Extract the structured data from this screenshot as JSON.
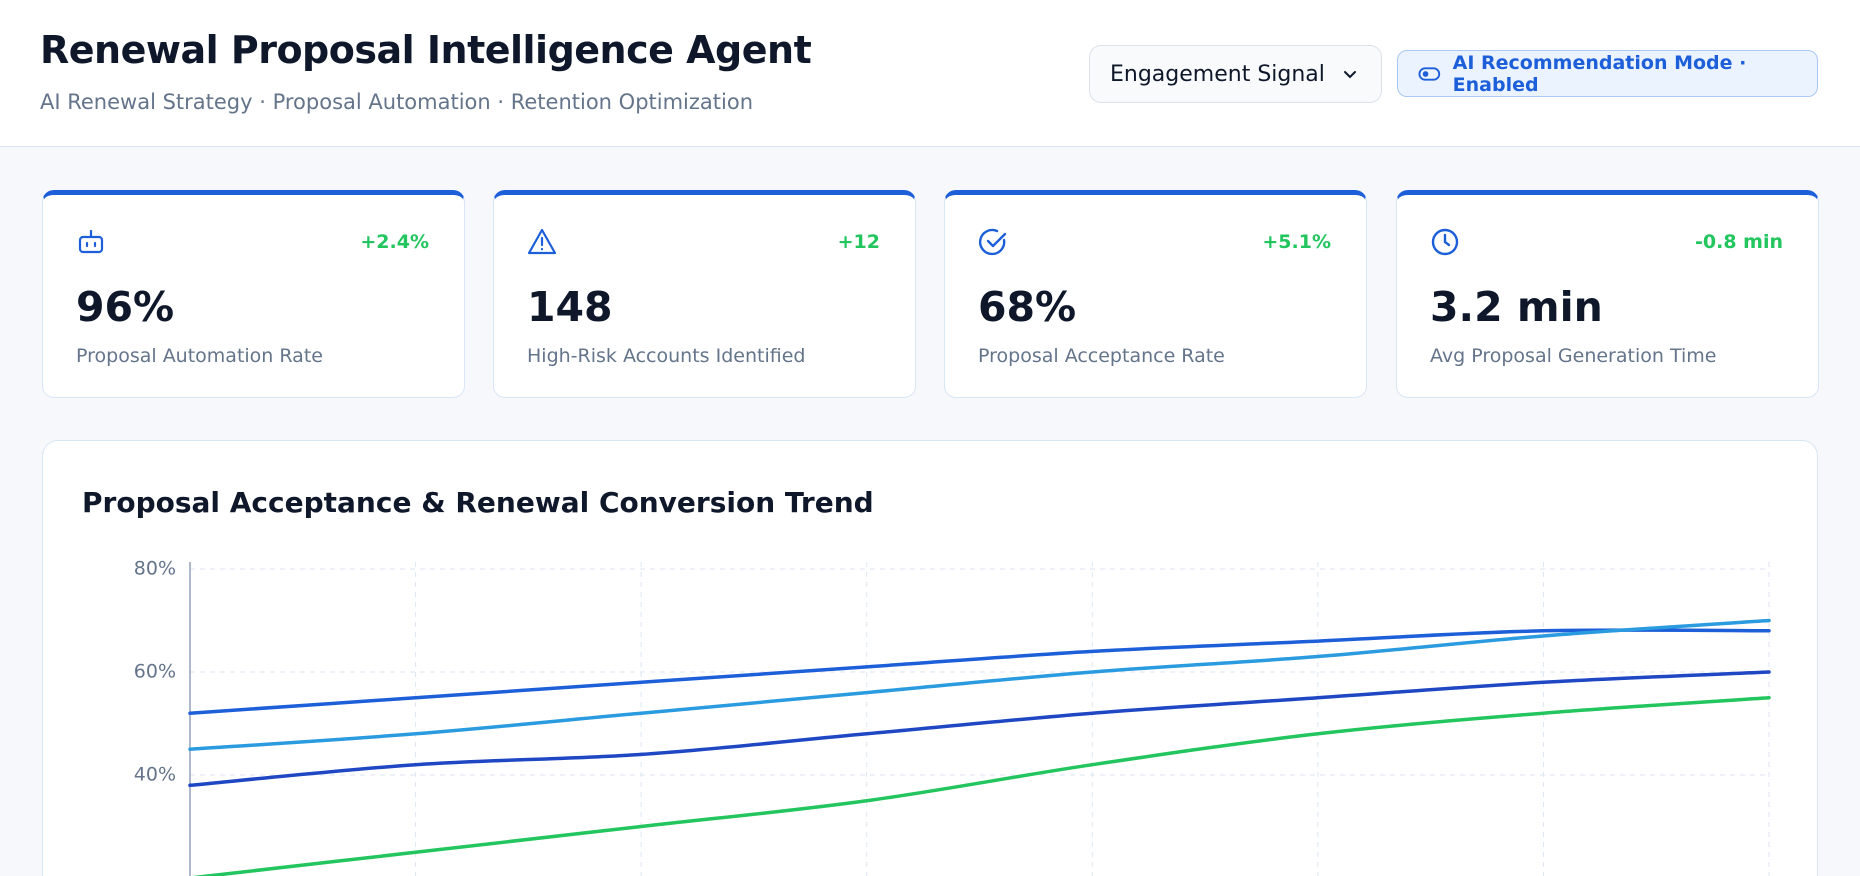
{
  "header": {
    "title": "Renewal Proposal Intelligence Agent",
    "subtitle": "AI Renewal Strategy · Proposal Automation · Retention Optimization"
  },
  "controls": {
    "dropdown": "Engagement Signal",
    "toggle": "AI Recommendation Mode · Enabled"
  },
  "kpis": [
    {
      "delta": "+2.4%",
      "value": "96%",
      "label": "Proposal Automation Rate"
    },
    {
      "delta": "+12",
      "value": "148",
      "label": "High-Risk Accounts Identified"
    },
    {
      "delta": "+5.1%",
      "value": "68%",
      "label": "Proposal Acceptance Rate"
    },
    {
      "delta": "-0.8 min",
      "value": "3.2 min",
      "label": "Avg Proposal Generation Time"
    }
  ],
  "chart_data": {
    "type": "line",
    "title": "Proposal Acceptance & Renewal Conversion Trend",
    "categories": [
      null,
      null,
      null,
      null,
      null,
      null,
      null,
      null
    ],
    "series": [
      {
        "color": "#1d5fd9",
        "values": [
          52,
          55,
          58,
          61,
          64,
          66,
          68,
          68
        ]
      },
      {
        "color": "#2b9be0",
        "values": [
          45,
          48,
          52,
          56,
          60,
          63,
          67,
          70
        ]
      },
      {
        "color": "#1f47c4",
        "values": [
          38,
          42,
          44,
          48,
          52,
          55,
          58,
          60
        ]
      },
      {
        "color": "#22c55e",
        "values": [
          20,
          25,
          30,
          35,
          42,
          48,
          52,
          55
        ]
      }
    ],
    "ylim": [
      20,
      80
    ],
    "yticks": [
      {
        "value": 40,
        "label": "40%"
      },
      {
        "value": 60,
        "label": "60%"
      },
      {
        "value": 80,
        "label": "80%"
      }
    ],
    "grid": true
  }
}
